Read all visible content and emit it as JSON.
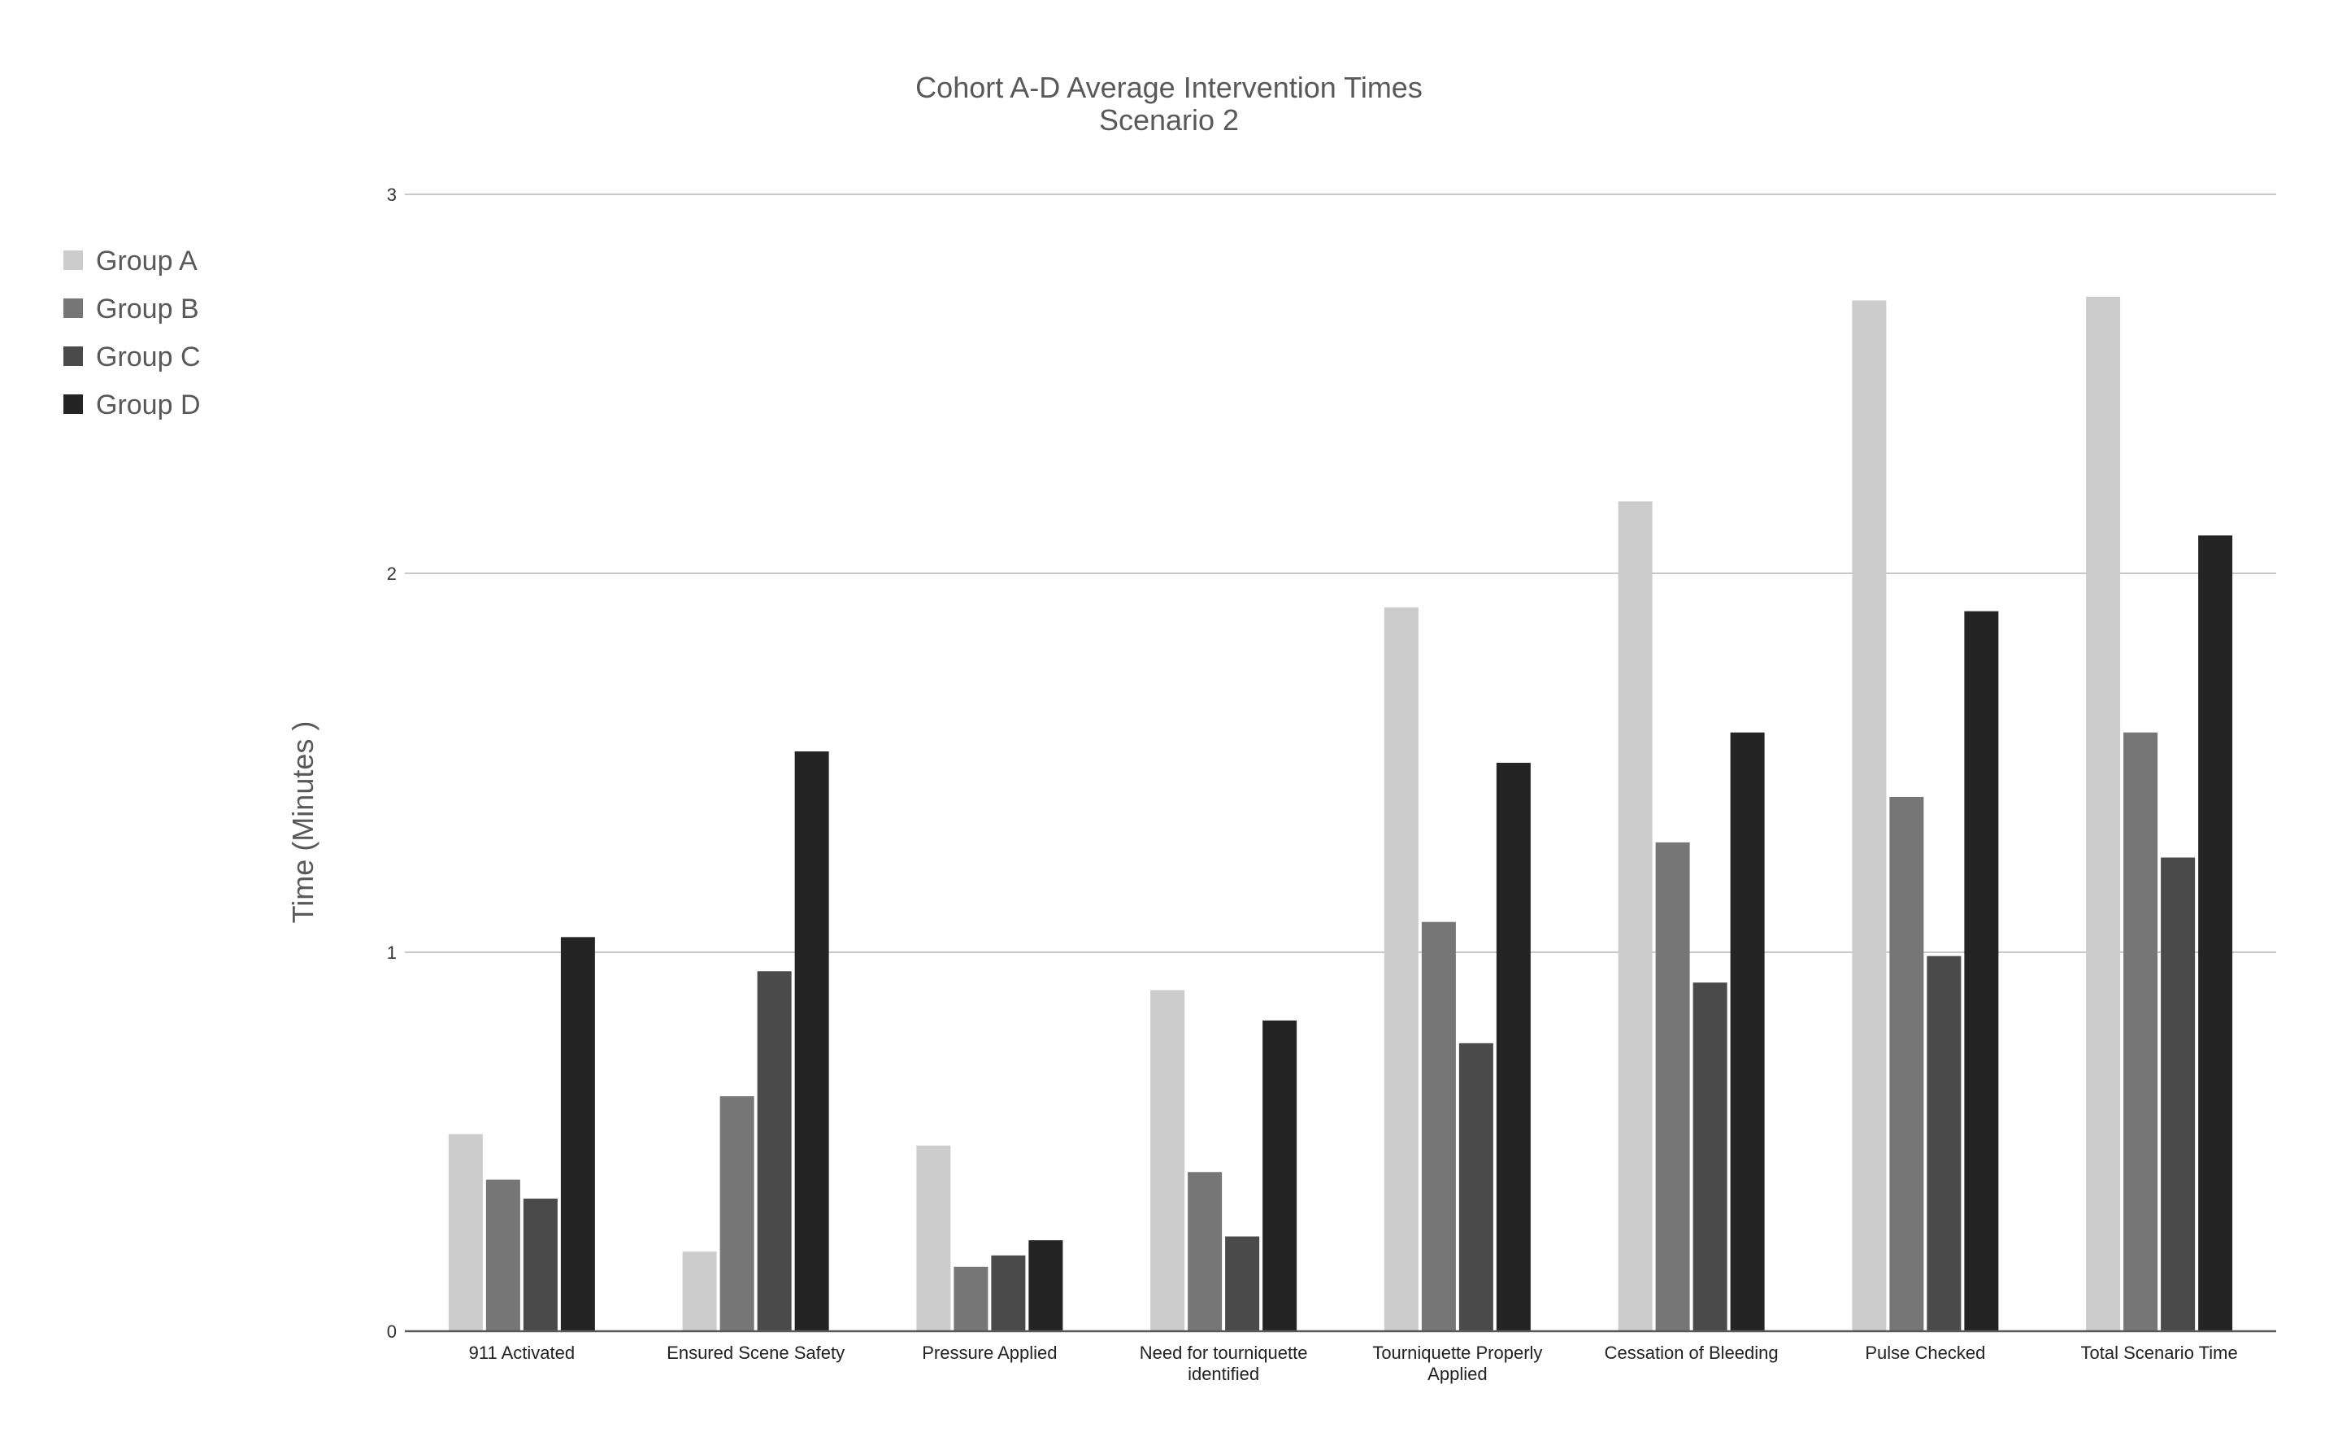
{
  "chart_data": {
    "type": "bar",
    "title": "Cohort A-D Average Intervention Times",
    "subtitle": "Scenario 2",
    "ylabel": "Time (Minutes )",
    "xlabel": "",
    "ylim": [
      0,
      3
    ],
    "yticks": [
      "0",
      "1",
      "2",
      "3"
    ],
    "grid": true,
    "legend_position": "left",
    "categories": [
      "911 Activated",
      "Ensured Scene Safety",
      "Pressure Applied",
      "Need for tourniquette identified",
      "Tourniquette Properly Applied",
      "Cessation of Bleeding",
      "Pulse Checked",
      "Total Scenario Time"
    ],
    "series": [
      {
        "name": "Group A",
        "color": "#cccccc",
        "values": [
          0.52,
          0.21,
          0.49,
          0.9,
          1.91,
          2.19,
          2.72,
          2.73
        ]
      },
      {
        "name": "Group B",
        "color": "#767676",
        "values": [
          0.4,
          0.62,
          0.17,
          0.42,
          1.08,
          1.29,
          1.41,
          1.58
        ]
      },
      {
        "name": "Group C",
        "color": "#4a4a4a",
        "values": [
          0.35,
          0.95,
          0.2,
          0.25,
          0.76,
          0.92,
          0.99,
          1.25
        ]
      },
      {
        "name": "Group D",
        "color": "#242424",
        "values": [
          1.04,
          1.53,
          0.24,
          0.82,
          1.5,
          1.58,
          1.9,
          2.1
        ]
      }
    ]
  }
}
